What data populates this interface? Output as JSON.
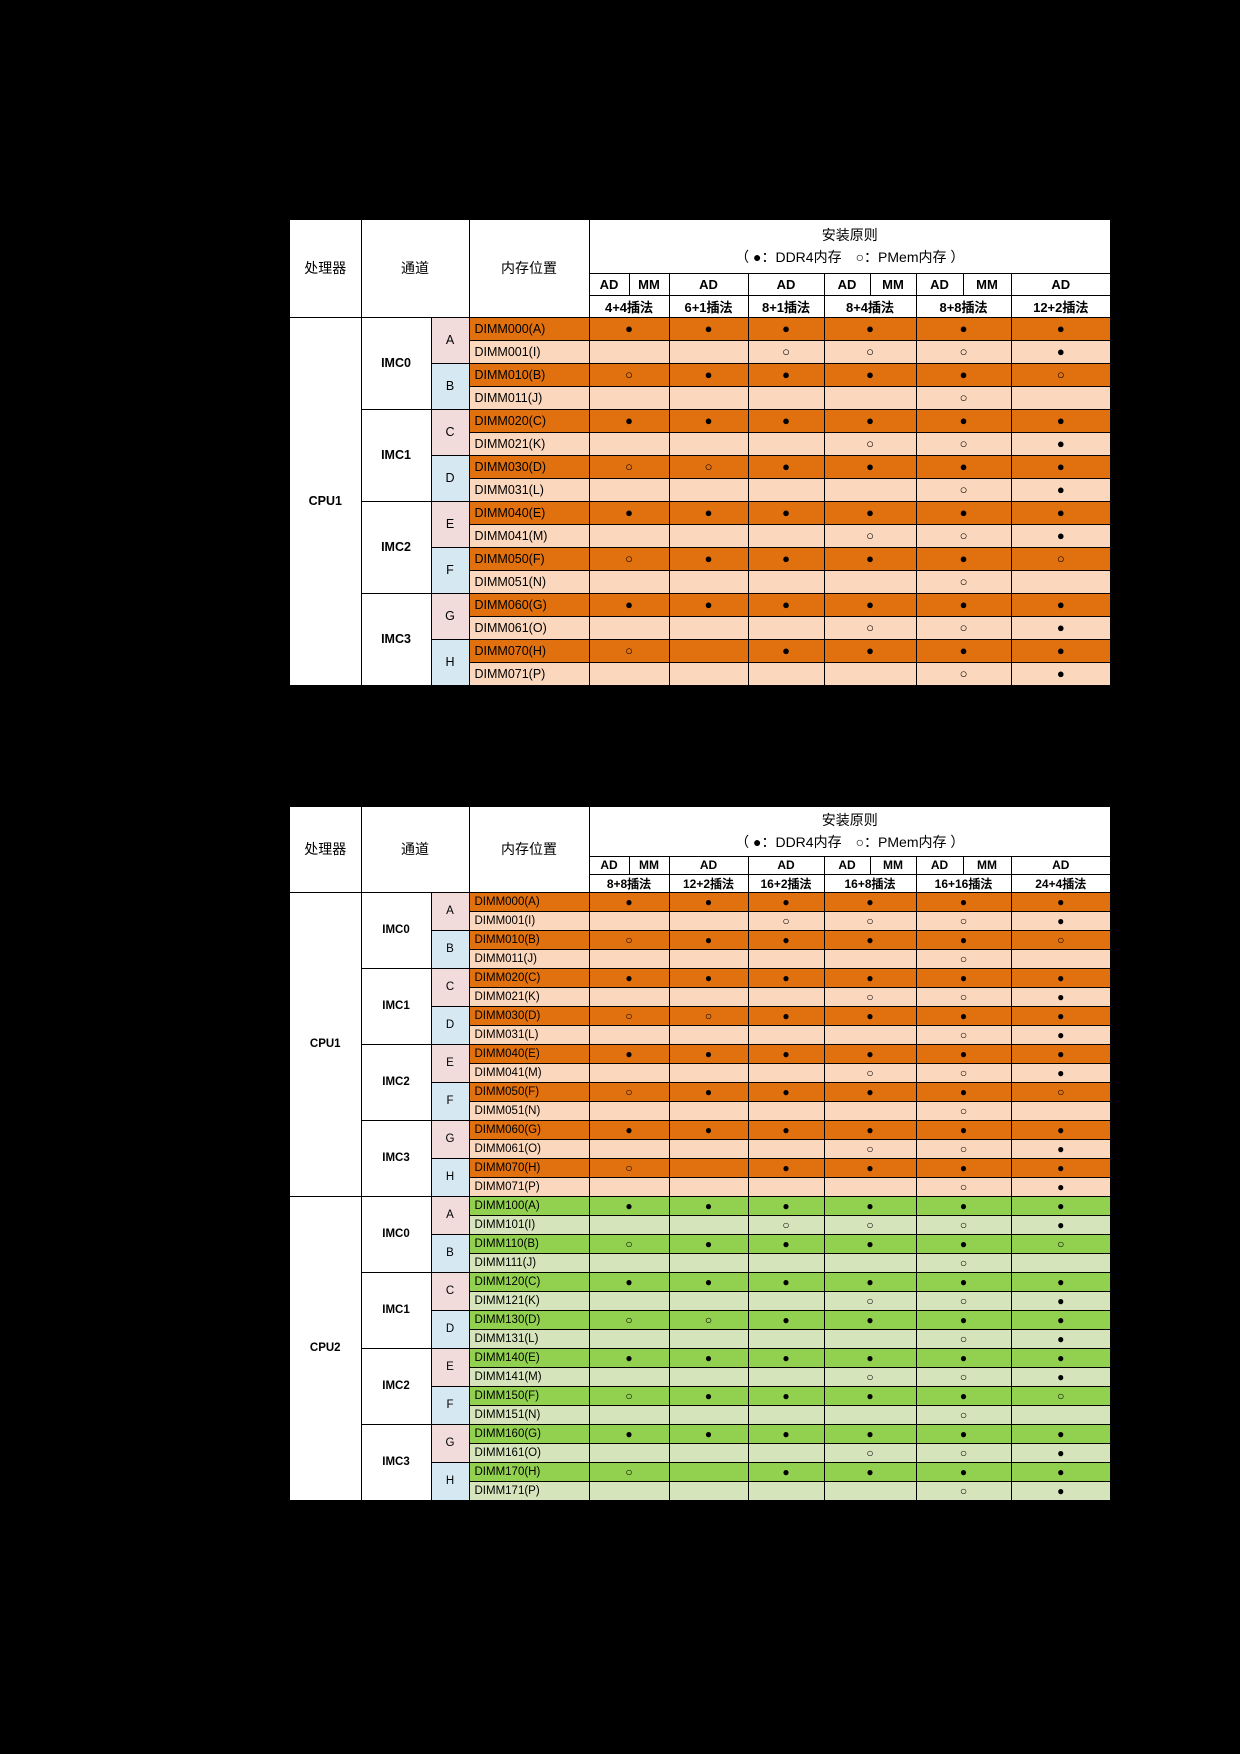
{
  "page": {
    "background": "#000000"
  },
  "header": {
    "processor": "处理器",
    "channel": "通道",
    "location": "内存位置",
    "principle_title": "安装原则",
    "principle_legend": "（ ●：DDR4内存　○：PMem内存 ）",
    "subcols": [
      "AD",
      "MM",
      "AD",
      "AD",
      "AD",
      "MM",
      "AD",
      "MM",
      "AD"
    ],
    "group_spans": [
      2,
      1,
      1,
      2,
      2,
      1
    ]
  },
  "symbols": {
    "ddr4": "●",
    "pmem": "○"
  },
  "colors": {
    "channel_pink": "#F2DCDB",
    "channel_blue": "#D6E9F2",
    "palettes": {
      "orange": {
        "dark": "#E1700F",
        "light": "#FBD7BD"
      },
      "green": {
        "dark": "#92D050",
        "light": "#D6E4BC"
      }
    }
  },
  "tables": [
    {
      "name": "cpu1-install-table",
      "groups": [
        "4+4插法",
        "6+1插法",
        "8+1插法",
        "8+4插法",
        "8+8插法",
        "12+2插法"
      ],
      "blocks": [
        {
          "cpu": "CPU1",
          "palette": "orange",
          "imcs": [
            "IMC0",
            "IMC1",
            "IMC2",
            "IMC3"
          ],
          "channels": [
            {
              "letter": "A",
              "tone": "pink"
            },
            {
              "letter": "B",
              "tone": "blue"
            },
            {
              "letter": "C",
              "tone": "pink"
            },
            {
              "letter": "D",
              "tone": "blue"
            },
            {
              "letter": "E",
              "tone": "pink"
            },
            {
              "letter": "F",
              "tone": "blue"
            },
            {
              "letter": "G",
              "tone": "pink"
            },
            {
              "letter": "H",
              "tone": "blue"
            }
          ],
          "rows": [
            {
              "label": "DIMM000(A)",
              "cells": [
                "●",
                "●",
                "●",
                "●",
                "●",
                "●"
              ]
            },
            {
              "label": "DIMM001(I)",
              "cells": [
                "",
                "",
                "○",
                "○",
                "○",
                "●"
              ]
            },
            {
              "label": "DIMM010(B)",
              "cells": [
                "○",
                "●",
                "●",
                "●",
                "●",
                "○"
              ]
            },
            {
              "label": "DIMM011(J)",
              "cells": [
                "",
                "",
                "",
                "",
                "○",
                ""
              ]
            },
            {
              "label": "DIMM020(C)",
              "cells": [
                "●",
                "●",
                "●",
                "●",
                "●",
                "●"
              ]
            },
            {
              "label": "DIMM021(K)",
              "cells": [
                "",
                "",
                "",
                "○",
                "○",
                "●"
              ]
            },
            {
              "label": "DIMM030(D)",
              "cells": [
                "○",
                "○",
                "●",
                "●",
                "●",
                "●"
              ]
            },
            {
              "label": "DIMM031(L)",
              "cells": [
                "",
                "",
                "",
                "",
                "○",
                "●"
              ]
            },
            {
              "label": "DIMM040(E)",
              "cells": [
                "●",
                "●",
                "●",
                "●",
                "●",
                "●"
              ]
            },
            {
              "label": "DIMM041(M)",
              "cells": [
                "",
                "",
                "",
                "○",
                "○",
                "●"
              ]
            },
            {
              "label": "DIMM050(F)",
              "cells": [
                "○",
                "●",
                "●",
                "●",
                "●",
                "○"
              ]
            },
            {
              "label": "DIMM051(N)",
              "cells": [
                "",
                "",
                "",
                "",
                "○",
                ""
              ]
            },
            {
              "label": "DIMM060(G)",
              "cells": [
                "●",
                "●",
                "●",
                "●",
                "●",
                "●"
              ]
            },
            {
              "label": "DIMM061(O)",
              "cells": [
                "",
                "",
                "",
                "○",
                "○",
                "●"
              ]
            },
            {
              "label": "DIMM070(H)",
              "cells": [
                "○",
                "",
                "●",
                "●",
                "●",
                "●"
              ]
            },
            {
              "label": "DIMM071(P)",
              "cells": [
                "",
                "",
                "",
                "",
                "○",
                "●"
              ]
            }
          ]
        }
      ]
    },
    {
      "name": "cpu1-cpu2-install-table",
      "groups": [
        "8+8插法",
        "12+2插法",
        "16+2插法",
        "16+8插法",
        "16+16插法",
        "24+4插法"
      ],
      "blocks": [
        {
          "cpu": "CPU1",
          "palette": "orange",
          "imcs": [
            "IMC0",
            "IMC1",
            "IMC2",
            "IMC3"
          ],
          "channels": [
            {
              "letter": "A",
              "tone": "pink"
            },
            {
              "letter": "B",
              "tone": "blue"
            },
            {
              "letter": "C",
              "tone": "pink"
            },
            {
              "letter": "D",
              "tone": "blue"
            },
            {
              "letter": "E",
              "tone": "pink"
            },
            {
              "letter": "F",
              "tone": "blue"
            },
            {
              "letter": "G",
              "tone": "pink"
            },
            {
              "letter": "H",
              "tone": "blue"
            }
          ],
          "rows": [
            {
              "label": "DIMM000(A)",
              "cells": [
                "●",
                "●",
                "●",
                "●",
                "●",
                "●"
              ]
            },
            {
              "label": "DIMM001(I)",
              "cells": [
                "",
                "",
                "○",
                "○",
                "○",
                "●"
              ]
            },
            {
              "label": "DIMM010(B)",
              "cells": [
                "○",
                "●",
                "●",
                "●",
                "●",
                "○"
              ]
            },
            {
              "label": "DIMM011(J)",
              "cells": [
                "",
                "",
                "",
                "",
                "○",
                ""
              ]
            },
            {
              "label": "DIMM020(C)",
              "cells": [
                "●",
                "●",
                "●",
                "●",
                "●",
                "●"
              ]
            },
            {
              "label": "DIMM021(K)",
              "cells": [
                "",
                "",
                "",
                "○",
                "○",
                "●"
              ]
            },
            {
              "label": "DIMM030(D)",
              "cells": [
                "○",
                "○",
                "●",
                "●",
                "●",
                "●"
              ]
            },
            {
              "label": "DIMM031(L)",
              "cells": [
                "",
                "",
                "",
                "",
                "○",
                "●"
              ]
            },
            {
              "label": "DIMM040(E)",
              "cells": [
                "●",
                "●",
                "●",
                "●",
                "●",
                "●"
              ]
            },
            {
              "label": "DIMM041(M)",
              "cells": [
                "",
                "",
                "",
                "○",
                "○",
                "●"
              ]
            },
            {
              "label": "DIMM050(F)",
              "cells": [
                "○",
                "●",
                "●",
                "●",
                "●",
                "○"
              ]
            },
            {
              "label": "DIMM051(N)",
              "cells": [
                "",
                "",
                "",
                "",
                "○",
                ""
              ]
            },
            {
              "label": "DIMM060(G)",
              "cells": [
                "●",
                "●",
                "●",
                "●",
                "●",
                "●"
              ]
            },
            {
              "label": "DIMM061(O)",
              "cells": [
                "",
                "",
                "",
                "○",
                "○",
                "●"
              ]
            },
            {
              "label": "DIMM070(H)",
              "cells": [
                "○",
                "",
                "●",
                "●",
                "●",
                "●"
              ]
            },
            {
              "label": "DIMM071(P)",
              "cells": [
                "",
                "",
                "",
                "",
                "○",
                "●"
              ]
            }
          ]
        },
        {
          "cpu": "CPU2",
          "palette": "green",
          "imcs": [
            "IMC0",
            "IMC1",
            "IMC2",
            "IMC3"
          ],
          "channels": [
            {
              "letter": "A",
              "tone": "pink"
            },
            {
              "letter": "B",
              "tone": "blue"
            },
            {
              "letter": "C",
              "tone": "pink"
            },
            {
              "letter": "D",
              "tone": "blue"
            },
            {
              "letter": "E",
              "tone": "pink"
            },
            {
              "letter": "F",
              "tone": "blue"
            },
            {
              "letter": "G",
              "tone": "pink"
            },
            {
              "letter": "H",
              "tone": "blue"
            }
          ],
          "rows": [
            {
              "label": "DIMM100(A)",
              "cells": [
                "●",
                "●",
                "●",
                "●",
                "●",
                "●"
              ]
            },
            {
              "label": "DIMM101(I)",
              "cells": [
                "",
                "",
                "○",
                "○",
                "○",
                "●"
              ]
            },
            {
              "label": "DIMM110(B)",
              "cells": [
                "○",
                "●",
                "●",
                "●",
                "●",
                "○"
              ]
            },
            {
              "label": "DIMM111(J)",
              "cells": [
                "",
                "",
                "",
                "",
                "○",
                ""
              ]
            },
            {
              "label": "DIMM120(C)",
              "cells": [
                "●",
                "●",
                "●",
                "●",
                "●",
                "●"
              ]
            },
            {
              "label": "DIMM121(K)",
              "cells": [
                "",
                "",
                "",
                "○",
                "○",
                "●"
              ]
            },
            {
              "label": "DIMM130(D)",
              "cells": [
                "○",
                "○",
                "●",
                "●",
                "●",
                "●"
              ]
            },
            {
              "label": "DIMM131(L)",
              "cells": [
                "",
                "",
                "",
                "",
                "○",
                "●"
              ]
            },
            {
              "label": "DIMM140(E)",
              "cells": [
                "●",
                "●",
                "●",
                "●",
                "●",
                "●"
              ]
            },
            {
              "label": "DIMM141(M)",
              "cells": [
                "",
                "",
                "",
                "○",
                "○",
                "●"
              ]
            },
            {
              "label": "DIMM150(F)",
              "cells": [
                "○",
                "●",
                "●",
                "●",
                "●",
                "○"
              ]
            },
            {
              "label": "DIMM151(N)",
              "cells": [
                "",
                "",
                "",
                "",
                "○",
                ""
              ]
            },
            {
              "label": "DIMM160(G)",
              "cells": [
                "●",
                "●",
                "●",
                "●",
                "●",
                "●"
              ]
            },
            {
              "label": "DIMM161(O)",
              "cells": [
                "",
                "",
                "",
                "○",
                "○",
                "●"
              ]
            },
            {
              "label": "DIMM170(H)",
              "cells": [
                "○",
                "",
                "●",
                "●",
                "●",
                "●"
              ]
            },
            {
              "label": "DIMM171(P)",
              "cells": [
                "",
                "",
                "",
                "",
                "○",
                "●"
              ]
            }
          ]
        }
      ]
    }
  ]
}
